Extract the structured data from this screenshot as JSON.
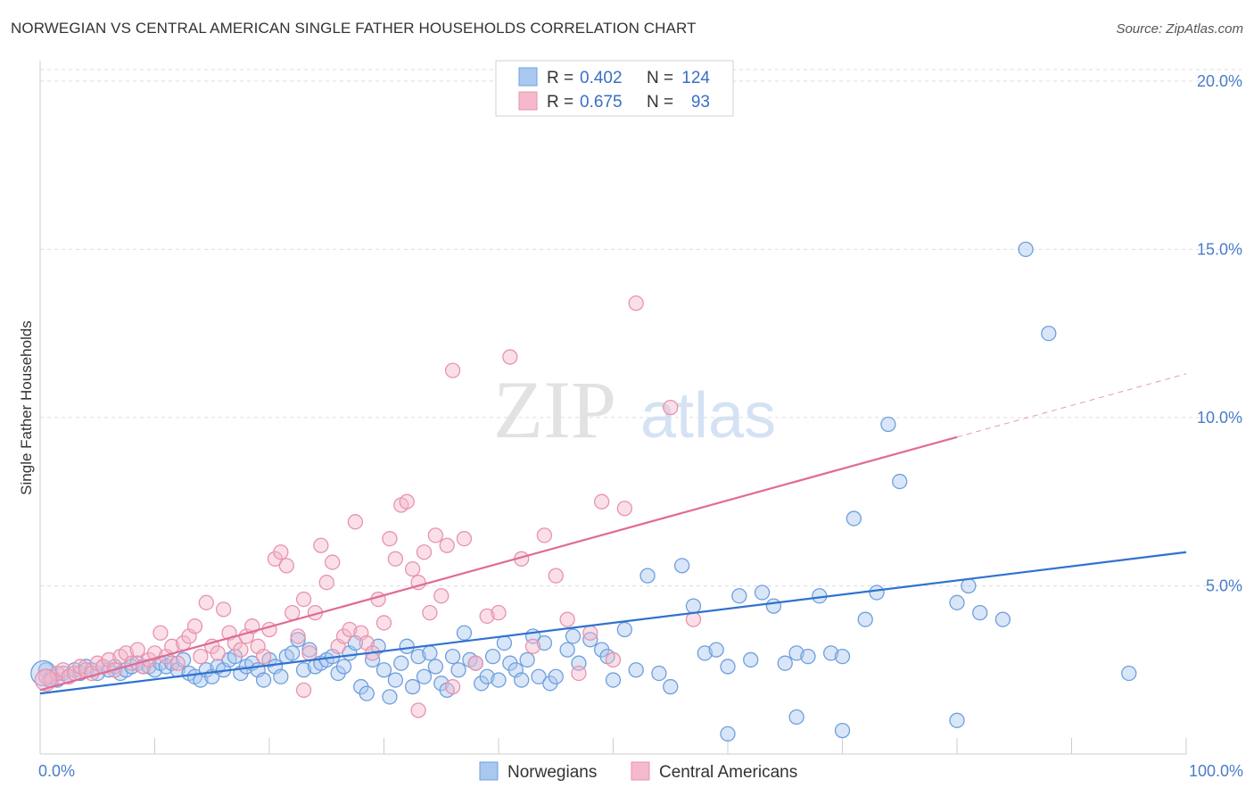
{
  "title": "NORWEGIAN VS CENTRAL AMERICAN SINGLE FATHER HOUSEHOLDS CORRELATION CHART",
  "source": "Source: ZipAtlas.com",
  "watermark": {
    "zip": "ZIP",
    "atlas": "atlas"
  },
  "colors": {
    "blue_fill": "#a9c8f0",
    "blue_stroke": "#6f9fdc",
    "blue_line": "#2f72d0",
    "pink_fill": "#f5b9cc",
    "pink_stroke": "#e893ad",
    "pink_line": "#e06b94",
    "grid": "#dddddd",
    "tick_text": "#4a7cc9"
  },
  "legend": {
    "rows": [
      {
        "r_label": "R =",
        "r_value": "0.402",
        "n_label": "N =",
        "n_value": "124"
      },
      {
        "r_label": "R =",
        "r_value": "0.675",
        "n_label": "N =",
        "n_value": "93"
      }
    ]
  },
  "chart_data": {
    "type": "scatter",
    "title": "NORWEGIAN VS CENTRAL AMERICAN SINGLE FATHER HOUSEHOLDS CORRELATION CHART",
    "xlabel": "",
    "ylabel": "Single Father Households",
    "xlim": [
      0,
      100
    ],
    "ylim": [
      0,
      20.5
    ],
    "x_tick_labels": {
      "min": "0.0%",
      "max": "100.0%"
    },
    "y_ticks": [
      5,
      10,
      15,
      20
    ],
    "y_tick_labels": [
      "5.0%",
      "10.0%",
      "15.0%",
      "20.0%"
    ],
    "grid": true,
    "legend_position": "top-center",
    "series": [
      {
        "name": "Norwegians",
        "r": 0.402,
        "n": 124,
        "trend": {
          "x": [
            0,
            100
          ],
          "y": [
            1.8,
            6.0
          ],
          "dashed_from": null
        },
        "points": [
          [
            0.5,
            2.5
          ],
          [
            0.8,
            2.2
          ],
          [
            1.0,
            2.3
          ],
          [
            1.5,
            2.2
          ],
          [
            2,
            2.4
          ],
          [
            2.5,
            2.3
          ],
          [
            3,
            2.5
          ],
          [
            3.5,
            2.4
          ],
          [
            4,
            2.6
          ],
          [
            4.5,
            2.5
          ],
          [
            5,
            2.4
          ],
          [
            5.5,
            2.6
          ],
          [
            6,
            2.5
          ],
          [
            6.5,
            2.6
          ],
          [
            7,
            2.4
          ],
          [
            7.5,
            2.5
          ],
          [
            8,
            2.6
          ],
          [
            8.5,
            2.7
          ],
          [
            9,
            2.6
          ],
          [
            9.5,
            2.6
          ],
          [
            10,
            2.5
          ],
          [
            10.5,
            2.7
          ],
          [
            11,
            2.6
          ],
          [
            11.5,
            2.7
          ],
          [
            12,
            2.5
          ],
          [
            12.5,
            2.8
          ],
          [
            13,
            2.4
          ],
          [
            13.5,
            2.3
          ],
          [
            14,
            2.2
          ],
          [
            14.5,
            2.5
          ],
          [
            15,
            2.3
          ],
          [
            15.5,
            2.6
          ],
          [
            16,
            2.5
          ],
          [
            16.5,
            2.8
          ],
          [
            17,
            2.9
          ],
          [
            17.5,
            2.4
          ],
          [
            18,
            2.6
          ],
          [
            18.5,
            2.7
          ],
          [
            19,
            2.5
          ],
          [
            19.5,
            2.2
          ],
          [
            20,
            2.8
          ],
          [
            20.5,
            2.6
          ],
          [
            21,
            2.3
          ],
          [
            21.5,
            2.9
          ],
          [
            22,
            3.0
          ],
          [
            22.5,
            3.4
          ],
          [
            23,
            2.5
          ],
          [
            23.5,
            3.1
          ],
          [
            24,
            2.6
          ],
          [
            24.5,
            2.7
          ],
          [
            25,
            2.8
          ],
          [
            25.5,
            2.9
          ],
          [
            26,
            2.4
          ],
          [
            26.5,
            2.6
          ],
          [
            27,
            3.0
          ],
          [
            27.5,
            3.3
          ],
          [
            28,
            2.0
          ],
          [
            28.5,
            1.8
          ],
          [
            29,
            2.8
          ],
          [
            29.5,
            3.2
          ],
          [
            30,
            2.5
          ],
          [
            30.5,
            1.7
          ],
          [
            31,
            2.2
          ],
          [
            31.5,
            2.7
          ],
          [
            32,
            3.2
          ],
          [
            32.5,
            2.0
          ],
          [
            33,
            2.9
          ],
          [
            33.5,
            2.3
          ],
          [
            34,
            3.0
          ],
          [
            34.5,
            2.6
          ],
          [
            35,
            2.1
          ],
          [
            35.5,
            1.9
          ],
          [
            36,
            2.9
          ],
          [
            36.5,
            2.5
          ],
          [
            37,
            3.6
          ],
          [
            37.5,
            2.8
          ],
          [
            38,
            2.7
          ],
          [
            38.5,
            2.1
          ],
          [
            39,
            2.3
          ],
          [
            39.5,
            2.9
          ],
          [
            40,
            2.2
          ],
          [
            40.5,
            3.3
          ],
          [
            41,
            2.7
          ],
          [
            41.5,
            2.5
          ],
          [
            42,
            2.2
          ],
          [
            42.5,
            2.8
          ],
          [
            43,
            3.5
          ],
          [
            43.5,
            2.3
          ],
          [
            44,
            3.3
          ],
          [
            44.5,
            2.1
          ],
          [
            45,
            2.3
          ],
          [
            46,
            3.1
          ],
          [
            46.5,
            3.5
          ],
          [
            47,
            2.7
          ],
          [
            48,
            3.4
          ],
          [
            49,
            3.1
          ],
          [
            49.5,
            2.9
          ],
          [
            50,
            2.2
          ],
          [
            51,
            3.7
          ],
          [
            52,
            2.5
          ],
          [
            53,
            5.3
          ],
          [
            54,
            2.4
          ],
          [
            55,
            2.0
          ],
          [
            56,
            5.6
          ],
          [
            57,
            4.4
          ],
          [
            58,
            3.0
          ],
          [
            59,
            3.1
          ],
          [
            60,
            2.6
          ],
          [
            61,
            4.7
          ],
          [
            62,
            2.8
          ],
          [
            63,
            4.8
          ],
          [
            64,
            4.4
          ],
          [
            65,
            2.7
          ],
          [
            66,
            3.0
          ],
          [
            67,
            2.9
          ],
          [
            68,
            4.7
          ],
          [
            69,
            3.0
          ],
          [
            70,
            2.9
          ],
          [
            71,
            7.0
          ],
          [
            72,
            4.0
          ],
          [
            73,
            4.8
          ],
          [
            74,
            9.8
          ],
          [
            75,
            8.1
          ],
          [
            80,
            4.5
          ],
          [
            81,
            5.0
          ],
          [
            82,
            4.2
          ],
          [
            84,
            4.0
          ],
          [
            86,
            15.0
          ],
          [
            88,
            12.5
          ],
          [
            95,
            2.4
          ],
          [
            60,
            0.6
          ],
          [
            66,
            1.1
          ],
          [
            70,
            0.7
          ],
          [
            80,
            1.0
          ]
        ]
      },
      {
        "name": "Central Americans",
        "r": 0.675,
        "n": 93,
        "trend": {
          "x": [
            0,
            100
          ],
          "y": [
            1.9,
            11.3
          ],
          "dashed_from": 80
        },
        "points": [
          [
            0.5,
            2.3
          ],
          [
            1,
            2.2
          ],
          [
            1.5,
            2.4
          ],
          [
            2,
            2.5
          ],
          [
            2.5,
            2.3
          ],
          [
            3,
            2.4
          ],
          [
            3.5,
            2.6
          ],
          [
            4,
            2.5
          ],
          [
            4.5,
            2.4
          ],
          [
            5,
            2.7
          ],
          [
            5.5,
            2.6
          ],
          [
            6,
            2.8
          ],
          [
            6.5,
            2.5
          ],
          [
            7,
            2.9
          ],
          [
            7.5,
            3.0
          ],
          [
            8,
            2.7
          ],
          [
            8.5,
            3.1
          ],
          [
            9,
            2.6
          ],
          [
            9.5,
            2.8
          ],
          [
            10,
            3.0
          ],
          [
            10.5,
            3.6
          ],
          [
            11,
            2.9
          ],
          [
            11.5,
            3.2
          ],
          [
            12,
            2.7
          ],
          [
            12.5,
            3.3
          ],
          [
            13,
            3.5
          ],
          [
            13.5,
            3.8
          ],
          [
            14,
            2.9
          ],
          [
            14.5,
            4.5
          ],
          [
            15,
            3.2
          ],
          [
            15.5,
            3.0
          ],
          [
            16,
            4.3
          ],
          [
            16.5,
            3.6
          ],
          [
            17,
            3.3
          ],
          [
            17.5,
            3.1
          ],
          [
            18,
            3.5
          ],
          [
            18.5,
            3.8
          ],
          [
            19,
            3.2
          ],
          [
            19.5,
            2.9
          ],
          [
            20,
            3.7
          ],
          [
            20.5,
            5.8
          ],
          [
            21,
            6.0
          ],
          [
            21.5,
            5.6
          ],
          [
            22,
            4.2
          ],
          [
            22.5,
            3.5
          ],
          [
            23,
            4.6
          ],
          [
            23.5,
            3.0
          ],
          [
            24,
            4.2
          ],
          [
            24.5,
            6.2
          ],
          [
            25,
            5.1
          ],
          [
            25.5,
            5.7
          ],
          [
            26,
            3.2
          ],
          [
            26.5,
            3.5
          ],
          [
            27,
            3.7
          ],
          [
            27.5,
            6.9
          ],
          [
            28,
            3.6
          ],
          [
            28.5,
            3.3
          ],
          [
            29,
            3.0
          ],
          [
            29.5,
            4.6
          ],
          [
            30,
            3.9
          ],
          [
            30.5,
            6.4
          ],
          [
            31,
            5.8
          ],
          [
            31.5,
            7.4
          ],
          [
            32,
            7.5
          ],
          [
            32.5,
            5.5
          ],
          [
            33,
            5.1
          ],
          [
            33.5,
            6.0
          ],
          [
            34,
            4.2
          ],
          [
            34.5,
            6.5
          ],
          [
            35,
            4.7
          ],
          [
            35.5,
            6.2
          ],
          [
            36,
            11.4
          ],
          [
            37,
            6.4
          ],
          [
            38,
            2.7
          ],
          [
            39,
            4.1
          ],
          [
            40,
            4.2
          ],
          [
            41,
            11.8
          ],
          [
            42,
            5.8
          ],
          [
            43,
            3.2
          ],
          [
            44,
            6.5
          ],
          [
            45,
            5.3
          ],
          [
            46,
            4.0
          ],
          [
            47,
            2.4
          ],
          [
            48,
            3.6
          ],
          [
            49,
            7.5
          ],
          [
            50,
            2.8
          ],
          [
            51,
            7.3
          ],
          [
            52,
            13.4
          ],
          [
            55,
            10.3
          ],
          [
            57,
            4.0
          ],
          [
            23,
            1.9
          ],
          [
            33,
            1.3
          ],
          [
            36,
            2.0
          ]
        ]
      }
    ]
  },
  "bottom_legend": {
    "items": [
      "Norwegians",
      "Central Americans"
    ]
  }
}
